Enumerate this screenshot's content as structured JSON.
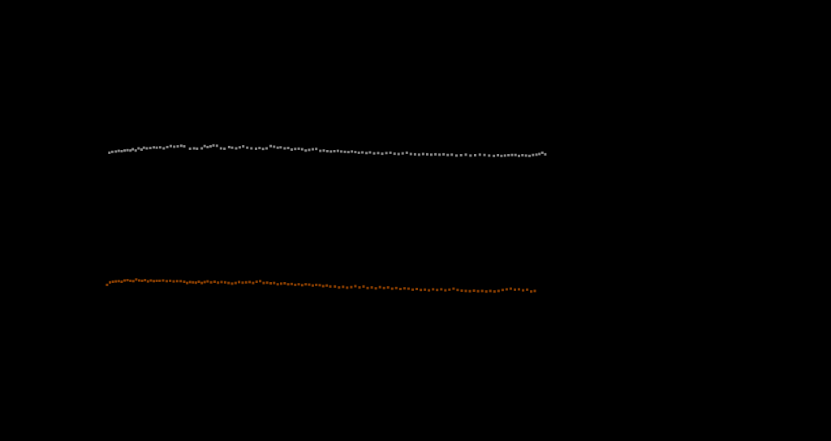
{
  "chart_data": {
    "type": "scatter",
    "title": "",
    "xlabel": "",
    "ylabel": "",
    "background_color": "#000000",
    "xlim": [
      0,
      100
    ],
    "ylim": [
      0,
      100
    ],
    "grid": false,
    "legend": "none",
    "series": [
      {
        "color": "#8a8a8a",
        "marker": "square-small",
        "points": [
          [
            1.5,
            72.2
          ],
          [
            2.0,
            72.5
          ],
          [
            2.6,
            72.6
          ],
          [
            3.1,
            72.8
          ],
          [
            3.6,
            72.7
          ],
          [
            4.1,
            72.9
          ],
          [
            4.6,
            73.0
          ],
          [
            5.1,
            72.9
          ],
          [
            5.5,
            73.3
          ],
          [
            6.0,
            72.9
          ],
          [
            6.5,
            73.6
          ],
          [
            7.0,
            73.2
          ],
          [
            7.4,
            73.8
          ],
          [
            7.9,
            73.6
          ],
          [
            8.5,
            73.7
          ],
          [
            9.1,
            73.9
          ],
          [
            9.6,
            73.8
          ],
          [
            10.2,
            73.9
          ],
          [
            10.8,
            73.6
          ],
          [
            11.4,
            74.0
          ],
          [
            12.0,
            74.3
          ],
          [
            12.6,
            74.1
          ],
          [
            13.2,
            74.2
          ],
          [
            13.8,
            74.4
          ],
          [
            14.3,
            74.2
          ],
          [
            15.3,
            73.5
          ],
          [
            16.0,
            73.6
          ],
          [
            16.5,
            73.5
          ],
          [
            17.3,
            73.6
          ],
          [
            17.8,
            74.3
          ],
          [
            18.3,
            74.0
          ],
          [
            18.8,
            74.2
          ],
          [
            19.3,
            74.5
          ],
          [
            19.9,
            74.4
          ],
          [
            20.6,
            73.6
          ],
          [
            21.2,
            73.5
          ],
          [
            22.0,
            74.0
          ],
          [
            22.5,
            73.8
          ],
          [
            23.2,
            73.6
          ],
          [
            23.8,
            73.9
          ],
          [
            24.4,
            74.2
          ],
          [
            25.1,
            73.8
          ],
          [
            25.8,
            73.6
          ],
          [
            26.6,
            73.5
          ],
          [
            27.2,
            73.7
          ],
          [
            27.8,
            73.4
          ],
          [
            28.4,
            73.6
          ],
          [
            29.1,
            74.3
          ],
          [
            29.7,
            74.1
          ],
          [
            30.3,
            73.8
          ],
          [
            30.8,
            73.9
          ],
          [
            31.5,
            73.6
          ],
          [
            32.1,
            73.7
          ],
          [
            32.7,
            73.2
          ],
          [
            33.3,
            73.4
          ],
          [
            33.9,
            73.5
          ],
          [
            34.5,
            73.3
          ],
          [
            35.1,
            72.9
          ],
          [
            35.7,
            73.1
          ],
          [
            36.3,
            73.3
          ],
          [
            36.9,
            73.4
          ],
          [
            37.6,
            72.8
          ],
          [
            38.2,
            72.9
          ],
          [
            38.8,
            72.7
          ],
          [
            39.4,
            72.6
          ],
          [
            40.0,
            72.7
          ],
          [
            40.6,
            72.8
          ],
          [
            41.2,
            72.6
          ],
          [
            41.8,
            72.5
          ],
          [
            42.4,
            72.4
          ],
          [
            43.0,
            72.6
          ],
          [
            43.6,
            72.4
          ],
          [
            44.2,
            72.2
          ],
          [
            44.8,
            72.3
          ],
          [
            45.5,
            72.1
          ],
          [
            46.1,
            72.3
          ],
          [
            46.8,
            72.0
          ],
          [
            47.5,
            72.1
          ],
          [
            48.2,
            71.9
          ],
          [
            48.9,
            72.1
          ],
          [
            49.6,
            72.2
          ],
          [
            50.3,
            71.9
          ],
          [
            51.0,
            71.8
          ],
          [
            51.7,
            72.0
          ],
          [
            52.4,
            72.2
          ],
          [
            53.1,
            71.8
          ],
          [
            53.8,
            71.7
          ],
          [
            54.5,
            71.6
          ],
          [
            55.2,
            71.8
          ],
          [
            55.9,
            71.7
          ],
          [
            56.6,
            71.6
          ],
          [
            57.3,
            71.7
          ],
          [
            58.0,
            71.6
          ],
          [
            58.7,
            71.7
          ],
          [
            59.4,
            71.5
          ],
          [
            60.1,
            71.6
          ],
          [
            60.9,
            71.3
          ],
          [
            61.7,
            71.4
          ],
          [
            62.5,
            71.6
          ],
          [
            63.3,
            71.3
          ],
          [
            64.1,
            71.4
          ],
          [
            64.9,
            71.6
          ],
          [
            65.7,
            71.5
          ],
          [
            66.5,
            71.3
          ],
          [
            67.3,
            71.2
          ],
          [
            68.0,
            71.4
          ],
          [
            68.6,
            71.2
          ],
          [
            69.2,
            71.3
          ],
          [
            69.8,
            71.4
          ],
          [
            70.4,
            71.5
          ],
          [
            71.0,
            71.5
          ],
          [
            71.6,
            71.2
          ],
          [
            72.2,
            71.4
          ],
          [
            72.8,
            71.3
          ],
          [
            73.4,
            71.2
          ],
          [
            74.0,
            71.5
          ],
          [
            74.6,
            71.6
          ],
          [
            75.1,
            71.8
          ],
          [
            75.6,
            72.2
          ],
          [
            76.1,
            71.7
          ]
        ]
      },
      {
        "color": "#8a3e00",
        "marker": "square-small",
        "points": [
          [
            1.1,
            30.4
          ],
          [
            1.6,
            31.2
          ],
          [
            2.1,
            31.4
          ],
          [
            2.6,
            31.5
          ],
          [
            3.1,
            31.6
          ],
          [
            3.6,
            31.4
          ],
          [
            4.1,
            31.8
          ],
          [
            4.6,
            31.9
          ],
          [
            5.1,
            31.7
          ],
          [
            5.6,
            31.6
          ],
          [
            6.1,
            32.1
          ],
          [
            6.6,
            31.8
          ],
          [
            7.1,
            31.7
          ],
          [
            7.6,
            31.9
          ],
          [
            8.1,
            31.5
          ],
          [
            8.6,
            31.8
          ],
          [
            9.1,
            31.6
          ],
          [
            9.6,
            31.7
          ],
          [
            10.1,
            31.7
          ],
          [
            10.7,
            31.8
          ],
          [
            11.3,
            31.6
          ],
          [
            11.9,
            31.7
          ],
          [
            12.5,
            31.5
          ],
          [
            13.1,
            31.6
          ],
          [
            13.7,
            31.6
          ],
          [
            14.3,
            31.4
          ],
          [
            14.8,
            31.0
          ],
          [
            15.3,
            31.3
          ],
          [
            15.8,
            31.2
          ],
          [
            16.3,
            31.1
          ],
          [
            16.8,
            31.4
          ],
          [
            17.3,
            31.0
          ],
          [
            17.8,
            31.3
          ],
          [
            18.3,
            31.5
          ],
          [
            18.9,
            31.2
          ],
          [
            19.5,
            31.4
          ],
          [
            20.1,
            31.1
          ],
          [
            20.7,
            31.3
          ],
          [
            21.3,
            31.2
          ],
          [
            21.9,
            31.0
          ],
          [
            22.5,
            30.8
          ],
          [
            23.1,
            31.0
          ],
          [
            23.7,
            31.3
          ],
          [
            24.3,
            31.1
          ],
          [
            24.9,
            31.2
          ],
          [
            25.5,
            31.3
          ],
          [
            26.1,
            31.0
          ],
          [
            26.7,
            31.4
          ],
          [
            27.3,
            31.6
          ],
          [
            27.9,
            31.0
          ],
          [
            28.5,
            31.1
          ],
          [
            29.1,
            30.9
          ],
          [
            29.7,
            31.0
          ],
          [
            30.3,
            30.6
          ],
          [
            30.9,
            30.8
          ],
          [
            31.5,
            30.9
          ],
          [
            32.1,
            30.6
          ],
          [
            32.7,
            30.7
          ],
          [
            33.3,
            30.4
          ],
          [
            33.9,
            30.6
          ],
          [
            34.5,
            30.3
          ],
          [
            35.1,
            30.6
          ],
          [
            35.7,
            30.5
          ],
          [
            36.3,
            30.2
          ],
          [
            36.9,
            30.4
          ],
          [
            37.5,
            30.3
          ],
          [
            38.1,
            30.0
          ],
          [
            38.7,
            30.2
          ],
          [
            39.3,
            29.9
          ],
          [
            40.1,
            29.9
          ],
          [
            40.8,
            29.6
          ],
          [
            41.5,
            29.8
          ],
          [
            42.2,
            29.5
          ],
          [
            42.9,
            29.7
          ],
          [
            43.6,
            30.0
          ],
          [
            44.3,
            29.6
          ],
          [
            45.0,
            29.9
          ],
          [
            45.7,
            29.4
          ],
          [
            46.4,
            29.6
          ],
          [
            47.1,
            29.3
          ],
          [
            47.8,
            29.7
          ],
          [
            48.5,
            29.4
          ],
          [
            49.2,
            29.6
          ],
          [
            49.9,
            29.2
          ],
          [
            50.6,
            29.4
          ],
          [
            51.3,
            29.1
          ],
          [
            52.0,
            29.3
          ],
          [
            52.7,
            29.2
          ],
          [
            53.4,
            28.9
          ],
          [
            54.1,
            29.1
          ],
          [
            54.8,
            28.8
          ],
          [
            55.5,
            28.9
          ],
          [
            56.2,
            28.7
          ],
          [
            56.9,
            29.0
          ],
          [
            57.6,
            28.8
          ],
          [
            58.3,
            29.0
          ],
          [
            59.0,
            28.7
          ],
          [
            59.7,
            28.9
          ],
          [
            60.4,
            29.2
          ],
          [
            61.1,
            28.8
          ],
          [
            61.8,
            28.6
          ],
          [
            62.5,
            28.5
          ],
          [
            63.2,
            28.4
          ],
          [
            63.9,
            28.6
          ],
          [
            64.6,
            28.4
          ],
          [
            65.3,
            28.5
          ],
          [
            66.0,
            28.3
          ],
          [
            66.7,
            28.5
          ],
          [
            67.4,
            28.3
          ],
          [
            68.1,
            28.5
          ],
          [
            68.8,
            28.8
          ],
          [
            69.5,
            29.0
          ],
          [
            70.2,
            29.2
          ],
          [
            70.9,
            28.9
          ],
          [
            71.6,
            29.0
          ],
          [
            72.3,
            28.7
          ],
          [
            73.0,
            28.9
          ],
          [
            73.7,
            28.3
          ],
          [
            74.3,
            28.5
          ]
        ]
      }
    ]
  }
}
